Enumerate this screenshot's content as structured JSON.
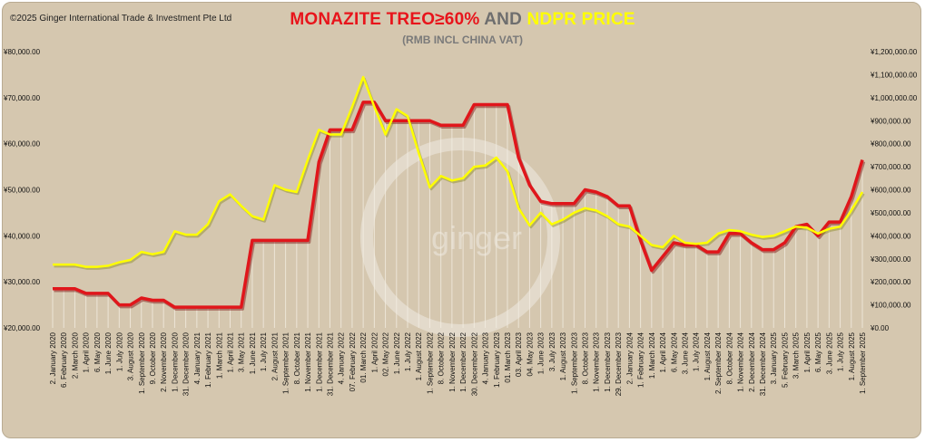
{
  "copyright": "©2025 Ginger International Trade & Investment Pte Ltd",
  "title": {
    "part1": "MONAZITE TREO≥60%",
    "part2": "AND",
    "part3": "NDPR PRICE"
  },
  "subtitle": "(RMB INCL CHINA VAT)",
  "watermark": "ginger",
  "colors": {
    "monazite": "#e0161b",
    "ndpr": "#ffff00",
    "background": "#d5c7af"
  },
  "chart_data": {
    "type": "line",
    "left_axis": {
      "ylim": [
        20000,
        80000
      ],
      "ticks": [
        "¥20,000.00",
        "¥30,000.00",
        "¥40,000.00",
        "¥50,000.00",
        "¥60,000.00",
        "¥70,000.00",
        "¥80,000.00"
      ]
    },
    "right_axis": {
      "ylim": [
        0,
        1200000
      ],
      "ticks": [
        "¥0.00",
        "¥100,000.00",
        "¥200,000.00",
        "¥300,000.00",
        "¥400,000.00",
        "¥500,000.00",
        "¥600,000.00",
        "¥700,000.00",
        "¥800,000.00",
        "¥900,000.00",
        "¥1,000,000.00",
        "¥1,100,000.00",
        "¥1,200,000.00"
      ]
    },
    "x_labels": [
      "2. January 2020",
      "6. February 2020",
      "2. March 2020",
      "1. April 2020",
      "6. May 2020",
      "1. June 2020",
      "1. July 2020",
      "3. August 2020",
      "1. September 2020",
      "9. October 2020",
      "2. November 2020",
      "1. December 2020",
      "31. December 2020",
      "4. January 2021",
      "1. February 2021",
      "1. March 2021",
      "1. April 2021",
      "3. May 2021",
      "1. June 2021",
      "1. July 2021",
      "2. August 2021",
      "1. September 2021",
      "8. October 2021",
      "1. November 2021",
      "1. December 2021",
      "31. December 2021",
      "4. January 2022",
      "07. February 2022",
      "01. March 2022",
      "1. April 2022",
      "02. May 2022",
      "1. June 2022",
      "1. July 2022",
      "1. August 2022",
      "1. September 2022",
      "8. October 2022",
      "1. November 2022",
      "1. December 2022",
      "30. December 2022",
      "4. January 2023",
      "1. February 2023",
      "01. March 2023",
      "03. April 2023",
      "04. May 2023",
      "1. June 2023",
      "3. July 2023",
      "1. August 2023",
      "1. September 2023",
      "8. October 2023",
      "1. November 2023",
      "1. December 2023",
      "29. December 2023",
      "2. January 2024",
      "1. February 2024",
      "1. March 2024",
      "1. April 2024",
      "6. May 2024",
      "3. June 2024",
      "1. July 2024",
      "1. August 2024",
      "2. September 2024",
      "8. October 2024",
      "1. November 2024",
      "2. December 2024",
      "31. December 2024",
      "3. January 2025",
      "5. February 2025",
      "3. March 2025",
      "1. April 2025",
      "6. May 2025",
      "3. June 2025",
      "1. July 2025",
      "1. August 2025",
      "1. September 2025"
    ],
    "series": [
      {
        "name": "MONAZITE TREO≥60%",
        "axis": "left",
        "values": [
          28500,
          28500,
          28500,
          27500,
          27500,
          27500,
          25000,
          25000,
          26500,
          26000,
          26000,
          24500,
          24500,
          24500,
          24500,
          24500,
          24500,
          24500,
          39000,
          39000,
          39000,
          39000,
          39000,
          39000,
          56000,
          63000,
          63000,
          63000,
          69000,
          69000,
          65000,
          65000,
          65000,
          65000,
          65000,
          64000,
          64000,
          64000,
          68500,
          68500,
          68500,
          68500,
          57000,
          51000,
          47500,
          47000,
          47000,
          47000,
          50000,
          49500,
          48500,
          46500,
          46500,
          39000,
          32500,
          35500,
          38500,
          38000,
          38000,
          36500,
          36500,
          40500,
          40500,
          38500,
          37000,
          37000,
          38500,
          42000,
          42500,
          40000,
          43000,
          43000,
          48500,
          56500
        ]
      },
      {
        "name": "NDPR PRICE",
        "axis": "right",
        "values": [
          275000,
          275000,
          275000,
          265000,
          265000,
          270000,
          285000,
          295000,
          330000,
          320000,
          330000,
          420000,
          405000,
          405000,
          450000,
          550000,
          580000,
          530000,
          485000,
          470000,
          620000,
          600000,
          590000,
          730000,
          860000,
          840000,
          840000,
          960000,
          1090000,
          960000,
          840000,
          950000,
          920000,
          760000,
          610000,
          660000,
          640000,
          650000,
          700000,
          705000,
          740000,
          680000,
          520000,
          445000,
          500000,
          450000,
          470000,
          500000,
          520000,
          510000,
          485000,
          450000,
          440000,
          400000,
          360000,
          350000,
          400000,
          370000,
          365000,
          370000,
          410000,
          425000,
          420000,
          405000,
          395000,
          400000,
          420000,
          440000,
          435000,
          410000,
          430000,
          440000,
          510000,
          590000
        ]
      }
    ]
  }
}
